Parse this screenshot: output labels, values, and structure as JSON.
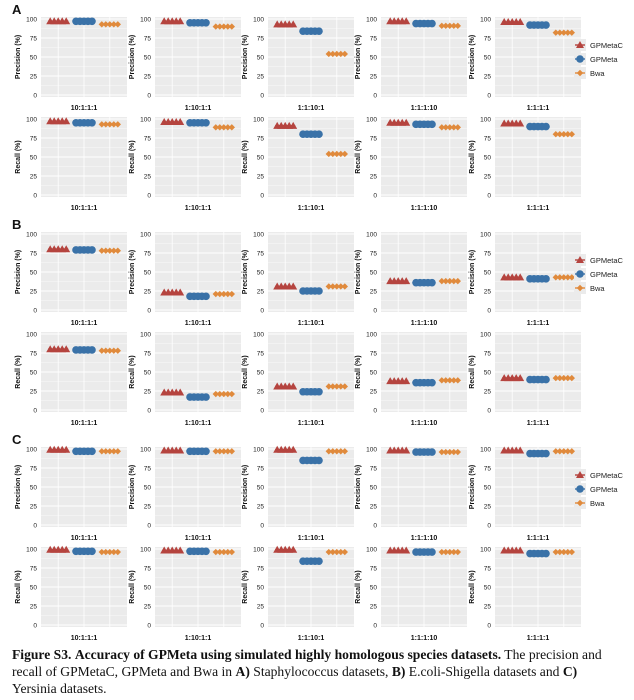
{
  "colors": {
    "GPMetaC": "#b5443f",
    "GPMeta": "#3a72a8",
    "Bwa": "#e08a3c",
    "panel_bg": "#ebebeb",
    "grid": "#ffffff"
  },
  "sections": [
    "A",
    "B",
    "C"
  ],
  "legend": [
    {
      "name": "GPMetaC",
      "icon": "triangle-icon"
    },
    {
      "name": "GPMeta",
      "icon": "circle-icon"
    },
    {
      "name": "Bwa",
      "icon": "diamond-icon"
    }
  ],
  "chart_data": {
    "type": "scatter",
    "metrics": [
      "Precision (%)",
      "Recall (%)"
    ],
    "ylim": [
      0,
      100
    ],
    "yticks": [
      0,
      25,
      50,
      75,
      100
    ],
    "grid": true,
    "legend_position": "right",
    "series": [
      "GPMetaC",
      "GPMeta",
      "Bwa"
    ],
    "panels": [
      {
        "section": "A",
        "metric": "Precision (%)",
        "x_labels": [
          "10:1:1:1",
          "1:10:1:1",
          "1:1:10:1",
          "1:1:1:10",
          "1:1:1:1"
        ],
        "values": [
          [
            97,
            97,
            93
          ],
          [
            97,
            95,
            90
          ],
          [
            93,
            84,
            54
          ],
          [
            97,
            94,
            91
          ],
          [
            96,
            92,
            82
          ]
        ]
      },
      {
        "section": "A",
        "metric": "Recall (%)",
        "x_labels": [
          "10:1:1:1",
          "1:10:1:1",
          "1:1:10:1",
          "1:1:1:10",
          "1:1:1:1"
        ],
        "values": [
          [
            97,
            95,
            93
          ],
          [
            96,
            95,
            89
          ],
          [
            91,
            80,
            54
          ],
          [
            95,
            93,
            89
          ],
          [
            94,
            90,
            80
          ]
        ]
      },
      {
        "section": "B",
        "metric": "Precision (%)",
        "x_labels": [
          "10:1:1:1",
          "1:10:1:1",
          "1:1:10:1",
          "1:1:1:10",
          "1:1:1:1"
        ],
        "values": [
          [
            80,
            79,
            78
          ],
          [
            23,
            18,
            21
          ],
          [
            31,
            25,
            31
          ],
          [
            38,
            36,
            38
          ],
          [
            43,
            41,
            43
          ]
        ]
      },
      {
        "section": "B",
        "metric": "Recall (%)",
        "x_labels": [
          "10:1:1:1",
          "1:10:1:1",
          "1:1:10:1",
          "1:1:1:10",
          "1:1:1:1"
        ],
        "values": [
          [
            80,
            79,
            78
          ],
          [
            23,
            17,
            21
          ],
          [
            31,
            24,
            31
          ],
          [
            38,
            36,
            39
          ],
          [
            42,
            40,
            42
          ]
        ]
      },
      {
        "section": "C",
        "metric": "Precision (%)",
        "x_labels": [
          "10:1:1:1",
          "1:10:1:1",
          "1:1:10:1",
          "1:1:1:10",
          "1:1:1:1"
        ],
        "values": [
          [
            99,
            97,
            97
          ],
          [
            98,
            97,
            97
          ],
          [
            99,
            85,
            97
          ],
          [
            98,
            96,
            96
          ],
          [
            98,
            94,
            97
          ]
        ]
      },
      {
        "section": "C",
        "metric": "Recall (%)",
        "x_labels": [
          "10:1:1:1",
          "1:10:1:1",
          "1:1:10:1",
          "1:1:1:10",
          "1:1:1:1"
        ],
        "values": [
          [
            99,
            97,
            96
          ],
          [
            98,
            97,
            96
          ],
          [
            99,
            84,
            96
          ],
          [
            98,
            96,
            96
          ],
          [
            98,
            94,
            96
          ]
        ]
      }
    ]
  },
  "caption": {
    "label": "Figure S3.",
    "title": "Accuracy of GPMeta using simulated highly homologous species datasets.",
    "text1": " The precision and recall of GPMetaC, GPMeta and Bwa in ",
    "a": "A)",
    "a_text": " Staphylococcus datasets, ",
    "b": "B)",
    "b_text": " E.coli-Shigella datasets and ",
    "c": "C)",
    "c_text": " Yersinia datasets."
  }
}
